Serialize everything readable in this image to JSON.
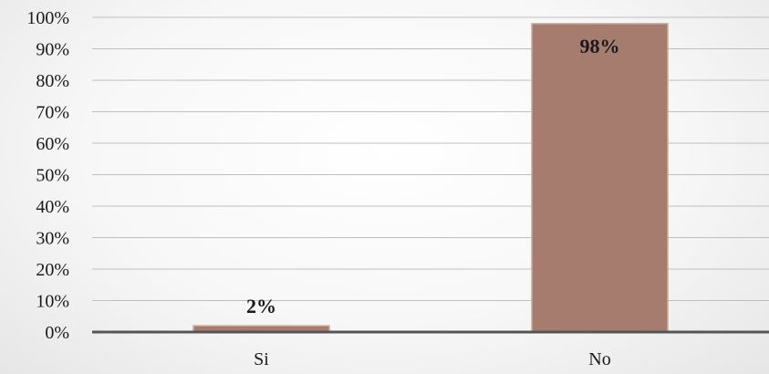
{
  "chart_data": {
    "type": "bar",
    "categories": [
      "Si",
      "No"
    ],
    "values": [
      2,
      98
    ],
    "data_labels": [
      "2%",
      "98%"
    ],
    "y_tick_labels": [
      "0%",
      "10%",
      "20%",
      "30%",
      "40%",
      "50%",
      "60%",
      "70%",
      "80%",
      "90%",
      "100%"
    ],
    "ylim": [
      0,
      100
    ],
    "y_tick_step": 10,
    "grid": true,
    "legend": "none",
    "title": "",
    "xlabel": "",
    "ylabel": "",
    "colors": {
      "bar_fill": "#a67c6e",
      "bar_stroke": "#c9ad9c",
      "gridline": "#bfbfbf",
      "axis": "#555555",
      "text": "#1a1a1a"
    }
  }
}
